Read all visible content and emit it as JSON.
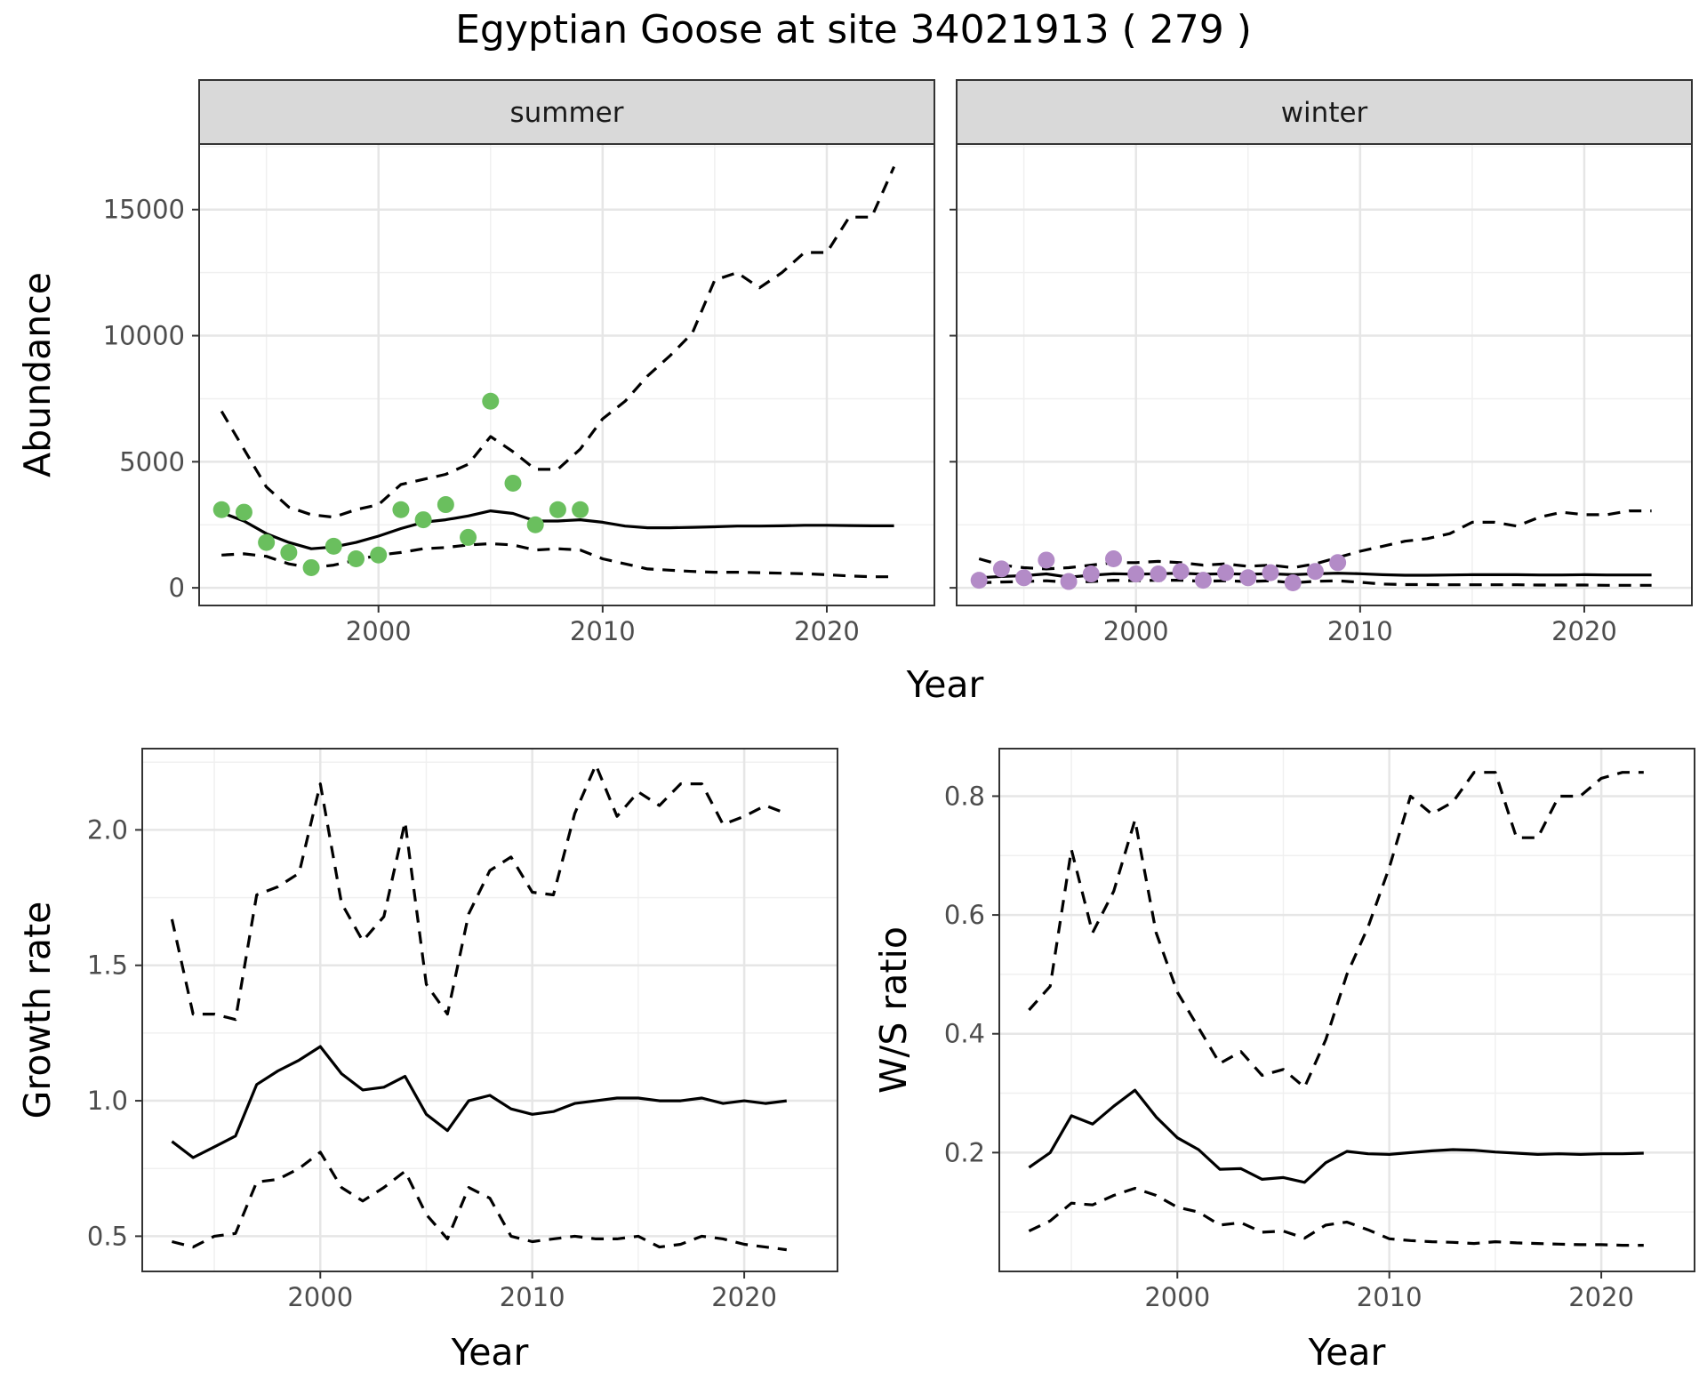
{
  "title": "Egyptian Goose at site 34021913 ( 279 )",
  "colors": {
    "summer_points": "#6abf5e",
    "winter_points": "#b38bc7",
    "line": "#000000",
    "strip": "#d9d9d9"
  },
  "chart_data": [
    {
      "type": "line",
      "panel": "summer",
      "xlabel": "Year",
      "ylabel": "Abundance",
      "xlim": [
        1992,
        2024.8
      ],
      "ylim": [
        -700,
        17600
      ],
      "xticks": [
        2000,
        2010,
        2020
      ],
      "yticks": [
        0,
        5000,
        10000,
        15000
      ],
      "tick_labels_x": [
        "2000",
        "2010",
        "2020"
      ],
      "tick_labels_y": [
        "0",
        "5000",
        "10000",
        "15000"
      ],
      "grid": true,
      "observed": {
        "x": [
          1993,
          1994,
          1995,
          1996,
          1997,
          1998,
          1999,
          2000,
          2001,
          2002,
          2003,
          2004,
          2005,
          2006,
          2007,
          2008,
          2009
        ],
        "y": [
          3100,
          3000,
          1800,
          1400,
          800,
          1650,
          1150,
          1300,
          3100,
          2700,
          3300,
          2000,
          7400,
          4150,
          2500,
          3100,
          3100
        ]
      },
      "series": [
        {
          "line": "solid",
          "x": [
            1993,
            1994,
            1995,
            1996,
            1997,
            1998,
            1999,
            2000,
            2001,
            2002,
            2003,
            2004,
            2005,
            2006,
            2007,
            2008,
            2009,
            2010,
            2011,
            2012,
            2013,
            2014,
            2015,
            2016,
            2017,
            2018,
            2019,
            2020,
            2021,
            2022,
            2023
          ],
          "y": [
            2980,
            2650,
            2150,
            1800,
            1550,
            1620,
            1800,
            2050,
            2350,
            2600,
            2700,
            2850,
            3050,
            2950,
            2650,
            2650,
            2700,
            2600,
            2450,
            2380,
            2380,
            2400,
            2420,
            2450,
            2450,
            2460,
            2480,
            2480,
            2470,
            2460,
            2460
          ]
        },
        {
          "line": "dashed",
          "x": [
            1993,
            1994,
            1995,
            1996,
            1997,
            1998,
            1999,
            2000,
            2001,
            2002,
            2003,
            2004,
            2005,
            2006,
            2007,
            2008,
            2009,
            2010,
            2011,
            2012,
            2013,
            2014,
            2015,
            2016,
            2017,
            2018,
            2019,
            2020,
            2021,
            2022,
            2023
          ],
          "y": [
            7000,
            5500,
            4000,
            3200,
            2900,
            2800,
            3100,
            3300,
            4100,
            4300,
            4500,
            4900,
            6000,
            5400,
            4700,
            4700,
            5500,
            6700,
            7400,
            8400,
            9200,
            10100,
            12200,
            12500,
            11900,
            12500,
            13300,
            13300,
            14700,
            14700,
            16700
          ]
        },
        {
          "line": "dashed",
          "x": [
            1993,
            1994,
            1995,
            1996,
            1997,
            1998,
            1999,
            2000,
            2001,
            2002,
            2003,
            2004,
            2005,
            2006,
            2007,
            2008,
            2009,
            2010,
            2011,
            2012,
            2013,
            2014,
            2015,
            2016,
            2017,
            2018,
            2019,
            2020,
            2021,
            2022,
            2023
          ],
          "y": [
            1300,
            1350,
            1250,
            950,
            800,
            900,
            1100,
            1300,
            1400,
            1550,
            1600,
            1700,
            1750,
            1700,
            1500,
            1550,
            1500,
            1150,
            950,
            750,
            700,
            650,
            620,
            620,
            600,
            580,
            560,
            520,
            470,
            440,
            440
          ]
        }
      ]
    },
    {
      "type": "line",
      "panel": "winter",
      "xlabel": "Year",
      "ylabel": "Abundance",
      "xlim": [
        1992,
        2024.8
      ],
      "ylim": [
        -700,
        17600
      ],
      "xticks": [
        2000,
        2010,
        2020
      ],
      "yticks": [
        0,
        5000,
        10000,
        15000
      ],
      "tick_labels_x": [
        "2000",
        "2010",
        "2020"
      ],
      "grid": true,
      "observed": {
        "x": [
          1993,
          1994,
          1995,
          1996,
          1997,
          1998,
          1999,
          2000,
          2001,
          2002,
          2003,
          2004,
          2005,
          2006,
          2007,
          2008,
          2009
        ],
        "y": [
          300,
          750,
          400,
          1100,
          250,
          550,
          1150,
          550,
          550,
          650,
          300,
          600,
          400,
          600,
          200,
          650,
          1000
        ]
      },
      "series": [
        {
          "line": "solid",
          "x": [
            1993,
            1994,
            1995,
            1996,
            1997,
            1998,
            1999,
            2000,
            2001,
            2002,
            2003,
            2004,
            2005,
            2006,
            2007,
            2008,
            2009,
            2010,
            2011,
            2012,
            2013,
            2014,
            2015,
            2016,
            2017,
            2018,
            2019,
            2020,
            2021,
            2022,
            2023
          ],
          "y": [
            400,
            450,
            480,
            550,
            420,
            500,
            560,
            540,
            560,
            580,
            540,
            560,
            540,
            560,
            520,
            560,
            580,
            560,
            520,
            500,
            500,
            510,
            520,
            520,
            520,
            510,
            510,
            520,
            510,
            510,
            510
          ]
        },
        {
          "line": "dashed",
          "x": [
            1993,
            1994,
            1995,
            1996,
            1997,
            1998,
            1999,
            2000,
            2001,
            2002,
            2003,
            2004,
            2005,
            2006,
            2007,
            2008,
            2009,
            2010,
            2011,
            2012,
            2013,
            2014,
            2015,
            2016,
            2017,
            2018,
            2019,
            2020,
            2021,
            2022,
            2023
          ],
          "y": [
            1150,
            900,
            800,
            750,
            800,
            900,
            1000,
            1000,
            1050,
            1000,
            900,
            950,
            850,
            900,
            800,
            950,
            1200,
            1450,
            1650,
            1850,
            1950,
            2150,
            2600,
            2600,
            2450,
            2800,
            3000,
            2900,
            2900,
            3050,
            3050
          ]
        },
        {
          "line": "dashed",
          "x": [
            1993,
            1994,
            1995,
            1996,
            1997,
            1998,
            1999,
            2000,
            2001,
            2002,
            2003,
            2004,
            2005,
            2006,
            2007,
            2008,
            2009,
            2010,
            2011,
            2012,
            2013,
            2014,
            2015,
            2016,
            2017,
            2018,
            2019,
            2020,
            2021,
            2022,
            2023
          ],
          "y": [
            200,
            230,
            250,
            280,
            220,
            250,
            300,
            280,
            300,
            300,
            260,
            280,
            250,
            280,
            200,
            260,
            280,
            220,
            150,
            130,
            130,
            120,
            120,
            120,
            120,
            110,
            110,
            110,
            100,
            100,
            100
          ]
        }
      ]
    },
    {
      "type": "line",
      "panel": "growth",
      "xlabel": "Year",
      "ylabel": "Growth rate",
      "xlim": [
        1991.6,
        2024.4
      ],
      "ylim": [
        0.37,
        2.3
      ],
      "xticks": [
        2000,
        2010,
        2020
      ],
      "yticks": [
        0.5,
        1.0,
        1.5,
        2.0
      ],
      "tick_labels_x": [
        "2000",
        "2010",
        "2020"
      ],
      "tick_labels_y": [
        "0.5",
        "1.0",
        "1.5",
        "2.0"
      ],
      "grid": true,
      "series": [
        {
          "line": "solid",
          "x": [
            1993,
            1994,
            1995,
            1996,
            1997,
            1998,
            1999,
            2000,
            2001,
            2002,
            2003,
            2004,
            2005,
            2006,
            2007,
            2008,
            2009,
            2010,
            2011,
            2012,
            2013,
            2014,
            2015,
            2016,
            2017,
            2018,
            2019,
            2020,
            2021,
            2022
          ],
          "y": [
            0.85,
            0.79,
            0.83,
            0.87,
            1.06,
            1.11,
            1.15,
            1.2,
            1.1,
            1.04,
            1.05,
            1.09,
            0.95,
            0.89,
            1.0,
            1.02,
            0.97,
            0.95,
            0.96,
            0.99,
            1.0,
            1.01,
            1.01,
            1.0,
            1.0,
            1.01,
            0.99,
            1.0,
            0.99,
            1.0
          ]
        },
        {
          "line": "dashed",
          "x": [
            1993,
            1994,
            1995,
            1996,
            1997,
            1998,
            1999,
            2000,
            2001,
            2002,
            2003,
            2004,
            2005,
            2006,
            2007,
            2008,
            2009,
            2010,
            2011,
            2012,
            2013,
            2014,
            2015,
            2016,
            2017,
            2018,
            2019,
            2020,
            2021,
            2022
          ],
          "y": [
            1.67,
            1.32,
            1.32,
            1.3,
            1.76,
            1.79,
            1.84,
            2.17,
            1.73,
            1.59,
            1.68,
            2.03,
            1.43,
            1.32,
            1.69,
            1.85,
            1.9,
            1.77,
            1.76,
            2.06,
            2.24,
            2.05,
            2.14,
            2.09,
            2.17,
            2.17,
            2.02,
            2.05,
            2.09,
            2.06
          ]
        },
        {
          "line": "dashed",
          "x": [
            1993,
            1994,
            1995,
            1996,
            1997,
            1998,
            1999,
            2000,
            2001,
            2002,
            2003,
            2004,
            2005,
            2006,
            2007,
            2008,
            2009,
            2010,
            2011,
            2012,
            2013,
            2014,
            2015,
            2016,
            2017,
            2018,
            2019,
            2020,
            2021,
            2022
          ],
          "y": [
            0.48,
            0.46,
            0.5,
            0.51,
            0.7,
            0.71,
            0.75,
            0.81,
            0.68,
            0.63,
            0.68,
            0.74,
            0.58,
            0.49,
            0.68,
            0.64,
            0.5,
            0.48,
            0.49,
            0.5,
            0.49,
            0.49,
            0.5,
            0.46,
            0.47,
            0.5,
            0.49,
            0.47,
            0.46,
            0.45
          ]
        }
      ]
    },
    {
      "type": "line",
      "panel": "ratio",
      "xlabel": "Year",
      "ylabel": "W/S ratio",
      "xlim": [
        1991.6,
        2024.4
      ],
      "ylim": [
        0.0,
        0.88
      ],
      "xticks": [
        2000,
        2010,
        2020
      ],
      "yticks": [
        0.2,
        0.4,
        0.6,
        0.8
      ],
      "tick_labels_x": [
        "2000",
        "2010",
        "2020"
      ],
      "tick_labels_y": [
        "0.2",
        "0.4",
        "0.6",
        "0.8"
      ],
      "grid": true,
      "series": [
        {
          "line": "solid",
          "x": [
            1993,
            1994,
            1995,
            1996,
            1997,
            1998,
            1999,
            2000,
            2001,
            2002,
            2003,
            2004,
            2005,
            2006,
            2007,
            2008,
            2009,
            2010,
            2011,
            2012,
            2013,
            2014,
            2015,
            2016,
            2017,
            2018,
            2019,
            2020,
            2021,
            2022
          ],
          "y": [
            0.175,
            0.2,
            0.262,
            0.248,
            0.278,
            0.305,
            0.26,
            0.225,
            0.205,
            0.172,
            0.173,
            0.155,
            0.158,
            0.15,
            0.183,
            0.202,
            0.198,
            0.197,
            0.2,
            0.203,
            0.205,
            0.204,
            0.201,
            0.199,
            0.197,
            0.198,
            0.197,
            0.198,
            0.198,
            0.199
          ]
        },
        {
          "line": "dashed",
          "x": [
            1993,
            1994,
            1995,
            1996,
            1997,
            1998,
            1999,
            2000,
            2001,
            2002,
            2003,
            2004,
            2005,
            2006,
            2007,
            2008,
            2009,
            2010,
            2011,
            2012,
            2013,
            2014,
            2015,
            2016,
            2017,
            2018,
            2019,
            2020,
            2021,
            2022
          ],
          "y": [
            0.44,
            0.48,
            0.71,
            0.57,
            0.64,
            0.76,
            0.57,
            0.47,
            0.41,
            0.35,
            0.37,
            0.33,
            0.34,
            0.31,
            0.39,
            0.5,
            0.58,
            0.68,
            0.8,
            0.77,
            0.79,
            0.84,
            0.84,
            0.73,
            0.73,
            0.8,
            0.8,
            0.83,
            0.84,
            0.84
          ]
        },
        {
          "line": "dashed",
          "x": [
            1993,
            1994,
            1995,
            1996,
            1997,
            1998,
            1999,
            2000,
            2001,
            2002,
            2003,
            2004,
            2005,
            2006,
            2007,
            2008,
            2009,
            2010,
            2011,
            2012,
            2013,
            2014,
            2015,
            2016,
            2017,
            2018,
            2019,
            2020,
            2021,
            2022
          ],
          "y": [
            0.068,
            0.085,
            0.115,
            0.112,
            0.128,
            0.14,
            0.128,
            0.108,
            0.1,
            0.078,
            0.082,
            0.066,
            0.068,
            0.056,
            0.078,
            0.083,
            0.07,
            0.055,
            0.052,
            0.05,
            0.049,
            0.047,
            0.05,
            0.048,
            0.047,
            0.046,
            0.045,
            0.045,
            0.044,
            0.044
          ]
        }
      ]
    }
  ]
}
